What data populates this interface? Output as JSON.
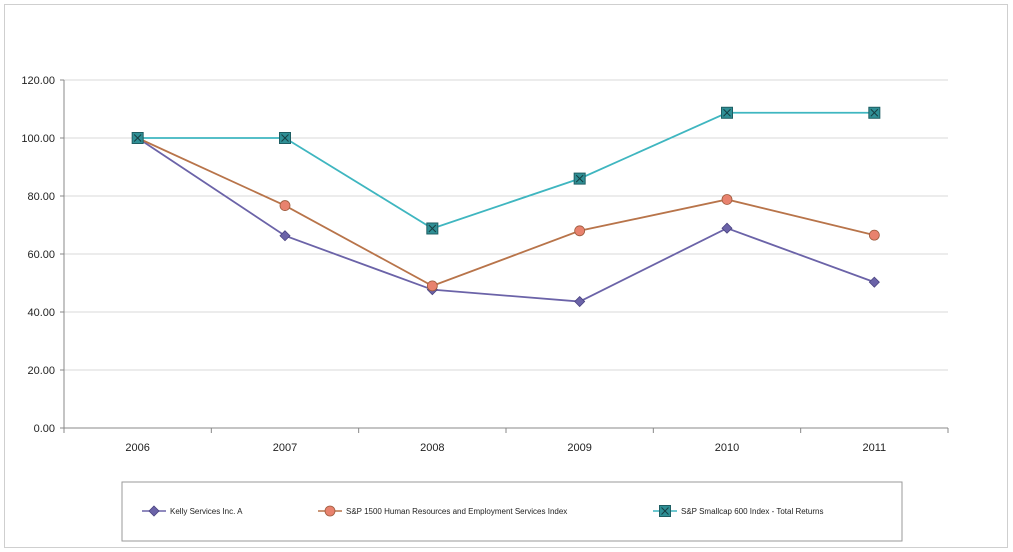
{
  "chart_data": {
    "type": "line",
    "categories": [
      "2006",
      "2007",
      "2008",
      "2009",
      "2010",
      "2011"
    ],
    "y_ticks": [
      "0.00",
      "20.00",
      "40.00",
      "60.00",
      "80.00",
      "100.00",
      "120.00"
    ],
    "ylim": [
      0,
      120
    ],
    "grid": true,
    "legend_position": "bottom",
    "series": [
      {
        "name": "Kelly Services Inc. A",
        "color": "#6b63a8",
        "marker": "diamond",
        "values": [
          100,
          66.3,
          47.7,
          43.6,
          68.9,
          50.3
        ]
      },
      {
        "name": "S&P 1500 Human Resources and Employment Services Index",
        "color": "#b8744a",
        "marker": "circle",
        "values": [
          100,
          76.7,
          49.0,
          68.0,
          78.8,
          66.5
        ]
      },
      {
        "name": "S&P Smallcap 600 Index - Total Returns",
        "color": "#3fb6c0",
        "marker": "square-x",
        "values": [
          100,
          100,
          68.8,
          86.0,
          108.7,
          108.7
        ]
      }
    ]
  }
}
